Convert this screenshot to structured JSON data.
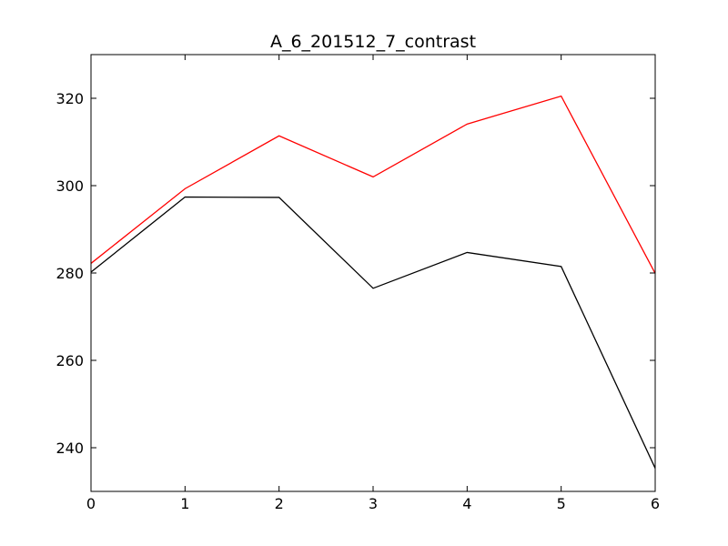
{
  "chart_data": {
    "type": "line",
    "title": "A_6_201512_7_contrast",
    "xlabel": "",
    "ylabel": "",
    "xlim": [
      0,
      6
    ],
    "ylim": [
      230,
      330
    ],
    "xticks": [
      0,
      1,
      2,
      3,
      4,
      5,
      6
    ],
    "yticks": [
      240,
      260,
      280,
      300,
      320
    ],
    "grid": false,
    "x": [
      0,
      1,
      2,
      3,
      4,
      5,
      6
    ],
    "series": [
      {
        "color": "#ff0000",
        "values": [
          282.2,
          299.3,
          311.4,
          302.0,
          314.1,
          320.5,
          279.9
        ]
      },
      {
        "color": "#000000",
        "values": [
          280.2,
          297.4,
          297.3,
          276.5,
          284.7,
          281.5,
          235.3
        ]
      }
    ]
  }
}
